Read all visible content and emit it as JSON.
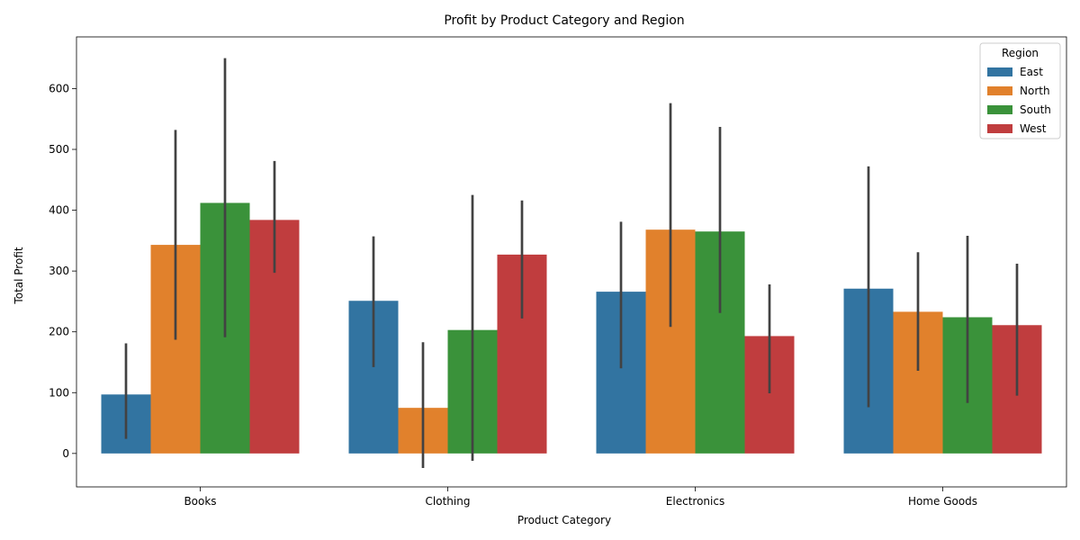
{
  "chart_data": {
    "type": "bar",
    "title": "Profit by Product Category and Region",
    "xlabel": "Product Category",
    "ylabel": "Total Profit",
    "ylim": [
      -55,
      685
    ],
    "yticks": [
      0,
      100,
      200,
      300,
      400,
      500,
      600
    ],
    "categories": [
      "Books",
      "Clothing",
      "Electronics",
      "Home Goods"
    ],
    "legend": {
      "title": "Region",
      "placement": "top-right"
    },
    "series": [
      {
        "name": "East",
        "color": "#3274a1",
        "values": [
          97,
          251,
          266,
          271
        ],
        "error_low": [
          24,
          142,
          140,
          76
        ],
        "error_high": [
          181,
          357,
          381,
          472
        ]
      },
      {
        "name": "North",
        "color": "#e1812c",
        "values": [
          343,
          75,
          368,
          233
        ],
        "error_low": [
          187,
          -24,
          208,
          136
        ],
        "error_high": [
          532,
          183,
          576,
          331
        ]
      },
      {
        "name": "South",
        "color": "#3a923a",
        "values": [
          412,
          203,
          365,
          224
        ],
        "error_low": [
          191,
          -12,
          231,
          83
        ],
        "error_high": [
          650,
          425,
          537,
          358
        ]
      },
      {
        "name": "West",
        "color": "#c03d3e",
        "values": [
          384,
          327,
          193,
          211
        ],
        "error_low": [
          297,
          222,
          99,
          95
        ],
        "error_high": [
          481,
          416,
          278,
          312
        ]
      }
    ]
  }
}
